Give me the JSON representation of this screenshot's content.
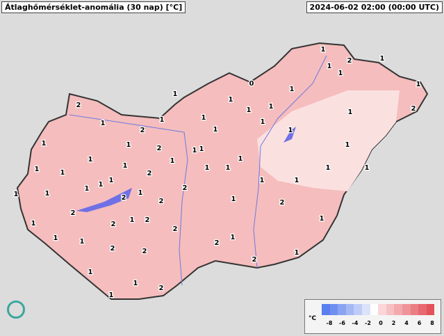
{
  "header": {
    "title": "Átlaghőmérséklet-anomália (30 nap) [°C]",
    "timestamp": "2024-06-02 02:00 (00:00 UTC)"
  },
  "legend": {
    "unit": "°C",
    "ticks": [
      "-8",
      "-6",
      "-4",
      "-2",
      "0",
      "2",
      "4",
      "6",
      "8"
    ],
    "colors": [
      "#5c7fef",
      "#6f8ff0",
      "#8aa3f2",
      "#a4b8f4",
      "#bfccf7",
      "#dbe3fa",
      "#ffffff",
      "#fad6d8",
      "#f6c0c3",
      "#f3aaae",
      "#ef9499",
      "#eb7e84",
      "#e7686f",
      "#e3525a"
    ]
  },
  "map": {
    "values": [
      2,
      1,
      1,
      2,
      1,
      1,
      1,
      2,
      1,
      1,
      1,
      1,
      2,
      1,
      1,
      1,
      1,
      1,
      1,
      1,
      2,
      1,
      1,
      1,
      2,
      1,
      2,
      1,
      1,
      2,
      1,
      1,
      1,
      2,
      1,
      2,
      2,
      2,
      2,
      1,
      1,
      1,
      2,
      2,
      1,
      1,
      1,
      2,
      1,
      1,
      1,
      2,
      1,
      1,
      1,
      1,
      0,
      1,
      1,
      2,
      1,
      1,
      1,
      1,
      2,
      1,
      1,
      1,
      1,
      1,
      1
    ],
    "country_fill": "#f7c2c2",
    "east_fill": "#fbe0e0",
    "lake_color": "#7070e6"
  }
}
